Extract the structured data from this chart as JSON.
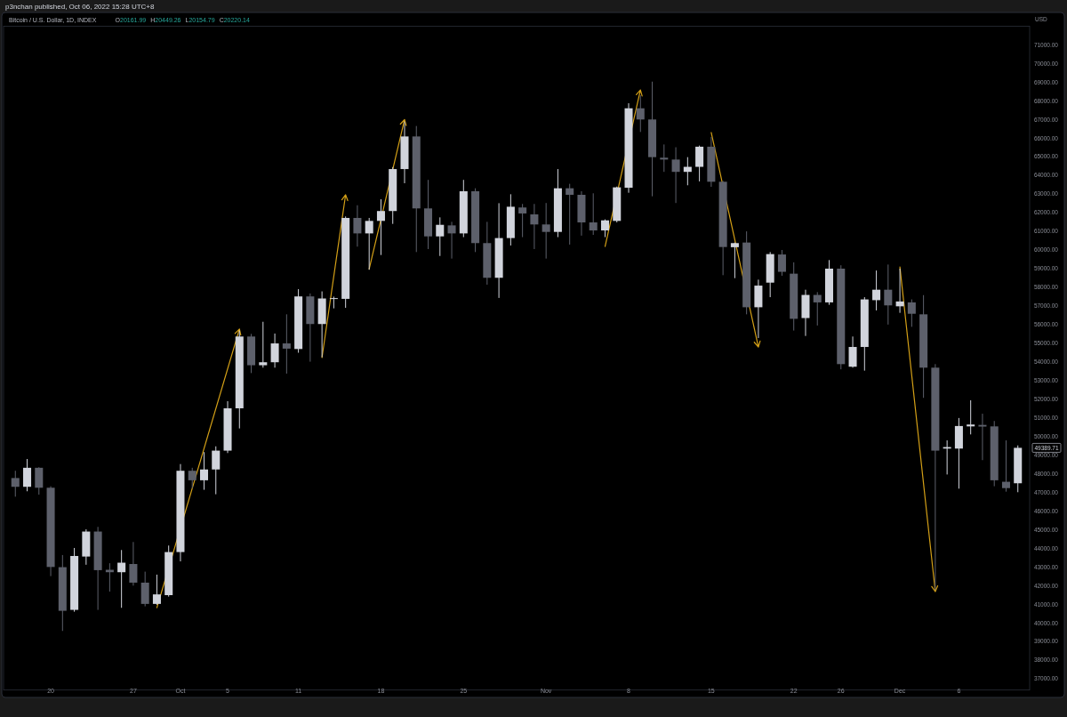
{
  "chart_data": {
    "type": "candlestick",
    "title": "Bitcoin / U.S. Dollar, 1D, INDEX",
    "ylabel": "USD",
    "annotations": [
      "p3nchan published, Oct 06, 2022 15:28 UTC+8",
      "O20161.99 H20449.26 L20154.79 C20220.14",
      "49389.71"
    ],
    "x": [
      "--09-17",
      "--09-18",
      "--09-19",
      "--09-20",
      "--09-21",
      "--09-22",
      "--09-23",
      "--09-24",
      "--09-25",
      "--09-26",
      "--09-27",
      "--09-28",
      "--09-29",
      "--09-30",
      "--10-01",
      "--10-02",
      "--10-03",
      "--10-04",
      "--10-05",
      "--10-06",
      "--10-07",
      "--10-08",
      "--10-09",
      "--10-10",
      "--10-11",
      "--10-12",
      "--10-13",
      "--10-14",
      "--10-15",
      "--10-16",
      "--10-17",
      "--10-18",
      "--10-19",
      "--10-20",
      "--10-21",
      "--10-22",
      "--10-23",
      "--10-24",
      "--10-25",
      "--10-26",
      "--10-27",
      "--10-28",
      "--10-29",
      "--10-30",
      "--10-31",
      "--11-01",
      "--11-02",
      "--11-03",
      "--11-04",
      "--11-05",
      "--11-06",
      "--11-07",
      "--11-08",
      "--11-09",
      "--11-10",
      "--11-11",
      "--11-12",
      "--11-13",
      "--11-14",
      "--11-15",
      "--11-16",
      "--11-17",
      "--11-18",
      "--11-19",
      "--11-20",
      "--11-21",
      "--11-22",
      "--11-23",
      "--11-24",
      "--11-25",
      "--11-26",
      "--11-27",
      "--11-28",
      "--11-29",
      "--11-30",
      "--12-01",
      "--12-02",
      "--12-03",
      "--12-04",
      "--12-05",
      "--12-06",
      "--12-07",
      "--12-08",
      "--12-09",
      "--12-10",
      "--12-11"
    ],
    "ohlc": [
      [
        47770,
        48160,
        46770,
        47300
      ],
      [
        47300,
        48790,
        47060,
        48320
      ],
      [
        48320,
        48350,
        46880,
        47250
      ],
      [
        47250,
        47330,
        42510,
        43000
      ],
      [
        42990,
        43640,
        39570,
        40650
      ],
      [
        40700,
        44020,
        40600,
        43590
      ],
      [
        43560,
        45020,
        43120,
        44900
      ],
      [
        44900,
        45150,
        40700,
        42830
      ],
      [
        42850,
        43200,
        41680,
        42720
      ],
      [
        42720,
        43910,
        40810,
        43230
      ],
      [
        43160,
        44340,
        42000,
        42160
      ],
      [
        42160,
        42750,
        40890,
        41020
      ],
      [
        41020,
        42590,
        40970,
        41530
      ],
      [
        41490,
        44150,
        41410,
        43800
      ],
      [
        43800,
        48520,
        43300,
        48160
      ],
      [
        48160,
        48320,
        47220,
        47650
      ],
      [
        47650,
        49160,
        47140,
        48230
      ],
      [
        48230,
        49470,
        46900,
        49240
      ],
      [
        49240,
        51890,
        49110,
        51510
      ],
      [
        51510,
        55680,
        50430,
        55360
      ],
      [
        55360,
        55500,
        53400,
        53820
      ],
      [
        53820,
        56150,
        53690,
        53980
      ],
      [
        53980,
        55520,
        53690,
        54990
      ],
      [
        54990,
        56550,
        53370,
        54710
      ],
      [
        54690,
        57900,
        54490,
        57510
      ],
      [
        57510,
        57670,
        54010,
        56030
      ],
      [
        56030,
        57780,
        54250,
        57400
      ],
      [
        57380,
        57500,
        56870,
        57420
      ],
      [
        57380,
        61800,
        56900,
        61720
      ],
      [
        61720,
        62400,
        60180,
        60890
      ],
      [
        60890,
        61720,
        58940,
        61560
      ],
      [
        61560,
        62720,
        59730,
        62090
      ],
      [
        62090,
        64450,
        61400,
        64340
      ],
      [
        64340,
        66890,
        63580,
        66090
      ],
      [
        66090,
        66650,
        59890,
        62230
      ],
      [
        62230,
        63760,
        60050,
        60730
      ],
      [
        60730,
        61750,
        59680,
        61350
      ],
      [
        61320,
        61510,
        59540,
        60890
      ],
      [
        60890,
        63760,
        60690,
        63150
      ],
      [
        63150,
        63310,
        59890,
        60370
      ],
      [
        60370,
        61510,
        58140,
        58510
      ],
      [
        58510,
        62510,
        57430,
        60640
      ],
      [
        60640,
        62990,
        60240,
        62320
      ],
      [
        62280,
        62470,
        60690,
        61960
      ],
      [
        61910,
        62470,
        60050,
        61370
      ],
      [
        61370,
        62520,
        59540,
        60970
      ],
      [
        60970,
        64340,
        60690,
        63310
      ],
      [
        63310,
        63550,
        60290,
        62960
      ],
      [
        62960,
        63150,
        60770,
        61480
      ],
      [
        61480,
        63040,
        60810,
        61050
      ],
      [
        61050,
        61640,
        60690,
        61590
      ],
      [
        61560,
        63400,
        61480,
        63360
      ],
      [
        63340,
        67870,
        63070,
        67600
      ],
      [
        67600,
        68300,
        66330,
        67000
      ],
      [
        67000,
        69030,
        62880,
        64980
      ],
      [
        64950,
        65660,
        64190,
        64850
      ],
      [
        64850,
        65510,
        62520,
        64190
      ],
      [
        64190,
        64980,
        63470,
        64460
      ],
      [
        64460,
        65600,
        63680,
        65540
      ],
      [
        65540,
        66060,
        63390,
        63660
      ],
      [
        63660,
        63700,
        58650,
        60160
      ],
      [
        60150,
        60400,
        58490,
        60370
      ],
      [
        60400,
        61000,
        56550,
        56930
      ],
      [
        56930,
        58410,
        55280,
        58090
      ],
      [
        58250,
        59890,
        57470,
        59780
      ],
      [
        59760,
        60000,
        58620,
        58830
      ],
      [
        58730,
        59340,
        55680,
        56310
      ],
      [
        56350,
        57870,
        55390,
        57590
      ],
      [
        57590,
        57740,
        55950,
        57190
      ],
      [
        57190,
        59460,
        57060,
        59000
      ],
      [
        59000,
        59180,
        53600,
        53880
      ],
      [
        53740,
        55360,
        53690,
        54800
      ],
      [
        54800,
        57470,
        53530,
        57350
      ],
      [
        57310,
        58900,
        56760,
        57870
      ],
      [
        57870,
        59220,
        56000,
        57030
      ],
      [
        56980,
        59000,
        56630,
        57240
      ],
      [
        57190,
        57350,
        55880,
        56580
      ],
      [
        56550,
        57580,
        52070,
        53690
      ],
      [
        53690,
        53880,
        41760,
        49240
      ],
      [
        49350,
        49790,
        47960,
        49430
      ],
      [
        49350,
        50990,
        47200,
        50560
      ],
      [
        50540,
        51940,
        50110,
        50640
      ],
      [
        50620,
        51220,
        48730,
        50530
      ],
      [
        50540,
        50830,
        47330,
        47650
      ],
      [
        47570,
        49790,
        47040,
        47230
      ],
      [
        47490,
        49520,
        47010,
        49390
      ]
    ],
    "colors": [
      "#5d606b",
      "#d1d4dc",
      "#5d606b",
      "#5d606b",
      "#5d606b",
      "#d1d4dc",
      "#d1d4dc",
      "#5d606b",
      "#5d606b",
      "#d1d4dc",
      "#5d606b",
      "#5d606b",
      "#d1d4dc",
      "#d1d4dc",
      "#d1d4dc",
      "#5d606b",
      "#d1d4dc",
      "#d1d4dc",
      "#d1d4dc",
      "#d1d4dc",
      "#5d606b",
      "#d1d4dc",
      "#d1d4dc",
      "#5d606b",
      "#d1d4dc",
      "#5d606b",
      "#d1d4dc",
      "#d1d4dc",
      "#d1d4dc",
      "#5d606b",
      "#d1d4dc",
      "#d1d4dc",
      "#d1d4dc",
      "#d1d4dc",
      "#5d606b",
      "#5d606b",
      "#d1d4dc",
      "#5d606b",
      "#d1d4dc",
      "#5d606b",
      "#5d606b",
      "#d1d4dc",
      "#d1d4dc",
      "#5d606b",
      "#5d606b",
      "#5d606b",
      "#d1d4dc",
      "#5d606b",
      "#5d606b",
      "#5d606b",
      "#d1d4dc",
      "#d1d4dc",
      "#d1d4dc",
      "#5d606b",
      "#5d606b",
      "#5d606b",
      "#5d606b",
      "#d1d4dc",
      "#d1d4dc",
      "#5d606b",
      "#5d606b",
      "#d1d4dc",
      "#5d606b",
      "#d1d4dc",
      "#d1d4dc",
      "#5d606b",
      "#5d606b",
      "#d1d4dc",
      "#5d606b",
      "#d1d4dc",
      "#5d606b",
      "#d1d4dc",
      "#d1d4dc",
      "#d1d4dc",
      "#5d606b",
      "#d1d4dc",
      "#5d606b",
      "#5d606b",
      "#5d606b",
      "#d1d4dc",
      "#d1d4dc",
      "#d1d4dc",
      "#5d606b",
      "#5d606b",
      "#5d606b",
      "#d1d4dc"
    ],
    "xlim": [
      "--09-16",
      "--12-12"
    ],
    "xticks": [
      {
        "value": "--09-20",
        "label": "20"
      },
      {
        "value": "--09-27",
        "label": "27"
      },
      {
        "value": "--10-01",
        "label": "Oct"
      },
      {
        "value": "--10-05",
        "label": "5"
      },
      {
        "value": "--10-11",
        "label": "11"
      },
      {
        "value": "--10-18",
        "label": "18"
      },
      {
        "value": "--10-25",
        "label": "25"
      },
      {
        "value": "--11-01",
        "label": "Nov"
      },
      {
        "value": "--11-08",
        "label": "8"
      },
      {
        "value": "--11-15",
        "label": "15"
      },
      {
        "value": "--11-22",
        "label": "22"
      },
      {
        "value": "--11-26",
        "label": "26"
      },
      {
        "value": "--12-01",
        "label": "Dec"
      },
      {
        "value": "--12-06",
        "label": "6"
      }
    ],
    "ylim": [
      36400,
      72000
    ],
    "yticks": [
      {
        "value": 37000,
        "label": "37000.00"
      },
      {
        "value": 38000,
        "label": "38000.00"
      },
      {
        "value": 39000,
        "label": "39000.00"
      },
      {
        "value": 40000,
        "label": "40000.00"
      },
      {
        "value": 41000,
        "label": "41000.00"
      },
      {
        "value": 42000,
        "label": "42000.00"
      },
      {
        "value": 43000,
        "label": "43000.00"
      },
      {
        "value": 44000,
        "label": "44000.00"
      },
      {
        "value": 45000,
        "label": "45000.00"
      },
      {
        "value": 46000,
        "label": "46000.00"
      },
      {
        "value": 47000,
        "label": "47000.00"
      },
      {
        "value": 48000,
        "label": "48000.00"
      },
      {
        "value": 49000,
        "label": "49000.00"
      },
      {
        "value": 50000,
        "label": "50000.00"
      },
      {
        "value": 51000,
        "label": "51000.00"
      },
      {
        "value": 52000,
        "label": "52000.00"
      },
      {
        "value": 53000,
        "label": "53000.00"
      },
      {
        "value": 54000,
        "label": "54000.00"
      },
      {
        "value": 55000,
        "label": "55000.00"
      },
      {
        "value": 56000,
        "label": "56000.00"
      },
      {
        "value": 57000,
        "label": "57000.00"
      },
      {
        "value": 58000,
        "label": "58000.00"
      },
      {
        "value": 59000,
        "label": "59000.00"
      },
      {
        "value": 60000,
        "label": "60000.00"
      },
      {
        "value": 61000,
        "label": "61000.00"
      },
      {
        "value": 62000,
        "label": "62000.00"
      },
      {
        "value": 63000,
        "label": "63000.00"
      },
      {
        "value": 64000,
        "label": "64000.00"
      },
      {
        "value": 65000,
        "label": "65000.00"
      },
      {
        "value": 66000,
        "label": "66000.00"
      },
      {
        "value": 67000,
        "label": "67000.00"
      },
      {
        "value": 68000,
        "label": "68000.00"
      },
      {
        "value": 69000,
        "label": "69000.00"
      },
      {
        "value": 70000,
        "label": "70000.00"
      },
      {
        "value": 71000,
        "label": "71000.00"
      }
    ]
  }
}
